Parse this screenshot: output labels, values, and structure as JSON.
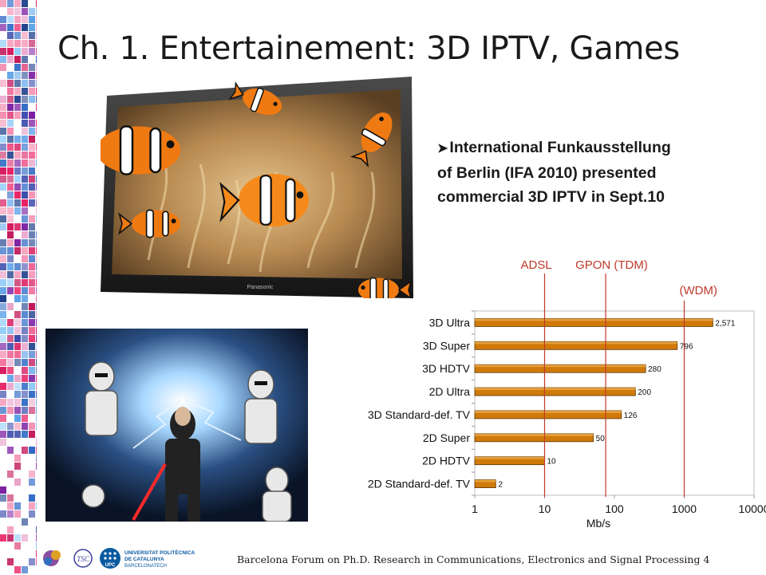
{
  "slide": {
    "title": "Ch. 1. Entertainement: 3D IPTV, Games",
    "bullet_lines": [
      "International Funkausstellung",
      "of Berlin (IFA 2010) presented",
      "commercial 3D IPTV in Sept.10"
    ],
    "footer": "Barcelona Forum on Ph.D. Research in Communications, Electronics and Signal Processing 4"
  },
  "logos": {
    "upc_line1": "UNIVERSITAT POLITÈCNICA",
    "upc_line2": "DE CATALUNYA",
    "upc_line3": "BARCELONATECH",
    "upc_mark": "UPC",
    "tsc_mark": "TSC",
    "colors": {
      "upc_blue": "#0a5aa0"
    }
  },
  "tv_image": {
    "brand": "Panasonic"
  },
  "chart_data": {
    "type": "bar",
    "orientation": "horizontal",
    "xscale": "log",
    "xlim": [
      1,
      10000
    ],
    "xticks": [
      1,
      10,
      100,
      1000,
      10000
    ],
    "xtick_labels": [
      "1",
      "10",
      "100",
      "1000",
      "10000"
    ],
    "xlabel": "Mb/s",
    "categories": [
      "3D Ultra",
      "3D Super",
      "3D HDTV",
      "2D Ultra",
      "3D Standard-def. TV",
      "2D Super",
      "2D HDTV",
      "2D Standard-def. TV"
    ],
    "values": [
      2571,
      796,
      280,
      200,
      126,
      50,
      10,
      2
    ],
    "value_labels": [
      "2,571",
      "796",
      "280",
      "200",
      "126",
      "50",
      "10",
      "2"
    ],
    "bar_color": "#d07a0a",
    "reference_lines": [
      {
        "label": "ADSL",
        "value": 10,
        "color": "#c0392b"
      },
      {
        "label": "GPON (TDM)",
        "value": 75,
        "color": "#c0392b"
      },
      {
        "label": "(WDM)",
        "value": 1000,
        "color": "#c0392b"
      }
    ]
  }
}
